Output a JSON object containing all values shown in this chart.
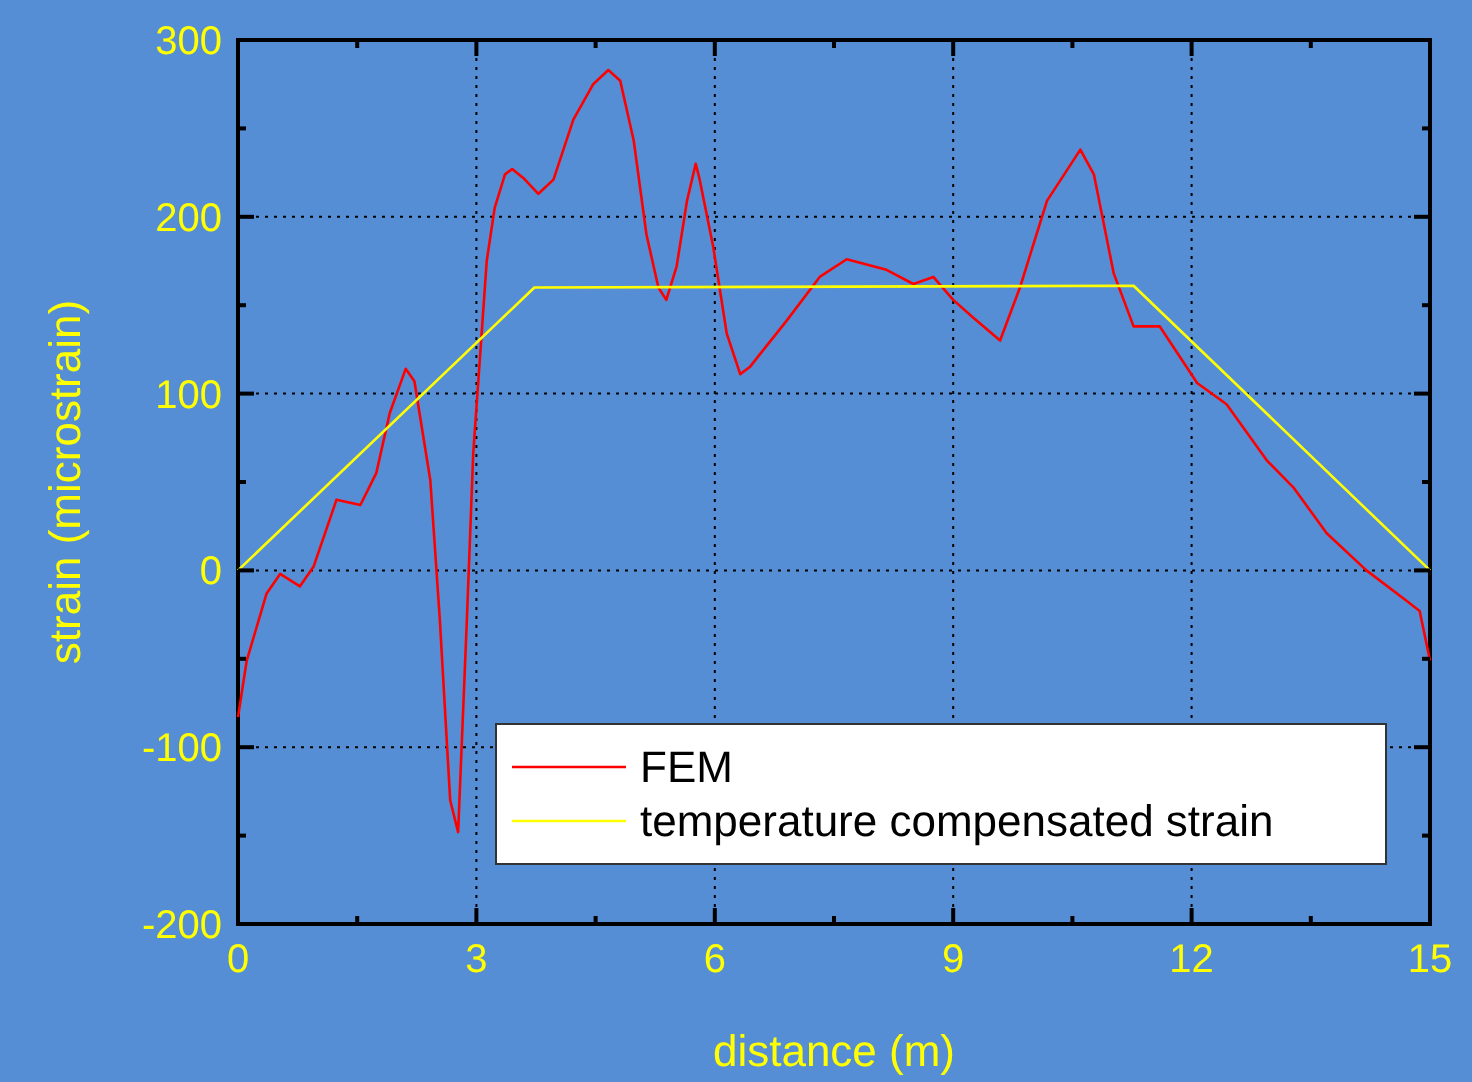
{
  "chart_data": {
    "type": "line",
    "xlabel": "distance (m)",
    "ylabel": "strain (microstrain)",
    "xlim": [
      0,
      15
    ],
    "xticks": [
      0,
      3,
      6,
      9,
      12,
      15
    ],
    "ylim": [
      -200,
      300
    ],
    "yticks": [
      -200,
      -100,
      0,
      100,
      200,
      300
    ],
    "grid": true,
    "legend": "bottom right",
    "line_style": "solid",
    "series": [
      {
        "name": "FEM",
        "color": "#ff0000",
        "x": [
          0,
          0.11,
          0.36,
          0.53,
          0.78,
          0.95,
          1.24,
          1.54,
          1.74,
          1.91,
          2.11,
          2.22,
          2.42,
          2.54,
          2.67,
          2.77,
          2.88,
          2.96,
          3.13,
          3.23,
          3.36,
          3.45,
          3.59,
          3.78,
          3.97,
          4.22,
          4.47,
          4.66,
          4.81,
          4.98,
          5.14,
          5.29,
          5.39,
          5.52,
          5.65,
          5.76,
          5.81,
          5.98,
          6.15,
          6.32,
          6.44,
          6.9,
          7.32,
          7.66,
          8.16,
          8.5,
          8.75,
          9.0,
          9.25,
          9.59,
          9.84,
          10.18,
          10.6,
          10.77,
          11.02,
          11.27,
          11.6,
          12.07,
          12.44,
          12.95,
          13.28,
          13.7,
          14.2,
          14.7,
          14.87,
          15
        ],
        "values": [
          -83,
          -51,
          -13,
          -2,
          -9,
          2,
          40,
          37,
          55,
          89,
          114,
          107,
          51,
          -28,
          -130,
          -148,
          -28,
          66,
          175,
          205,
          224,
          227,
          222,
          213,
          221,
          255,
          275,
          283,
          277,
          243,
          190,
          160,
          153,
          172,
          209,
          230,
          221,
          183,
          134,
          111,
          115,
          141,
          166,
          176,
          170,
          162,
          166,
          153,
          143,
          130,
          160,
          209,
          238,
          224,
          168,
          138,
          138,
          106,
          94,
          62,
          47,
          21,
          0,
          -17,
          -23,
          -51
        ]
      },
      {
        "name": "temperature compensated strain",
        "color": "#ffff00",
        "x": [
          0,
          3.73,
          11.27,
          15
        ],
        "values": [
          0,
          160,
          161,
          0
        ]
      }
    ]
  }
}
